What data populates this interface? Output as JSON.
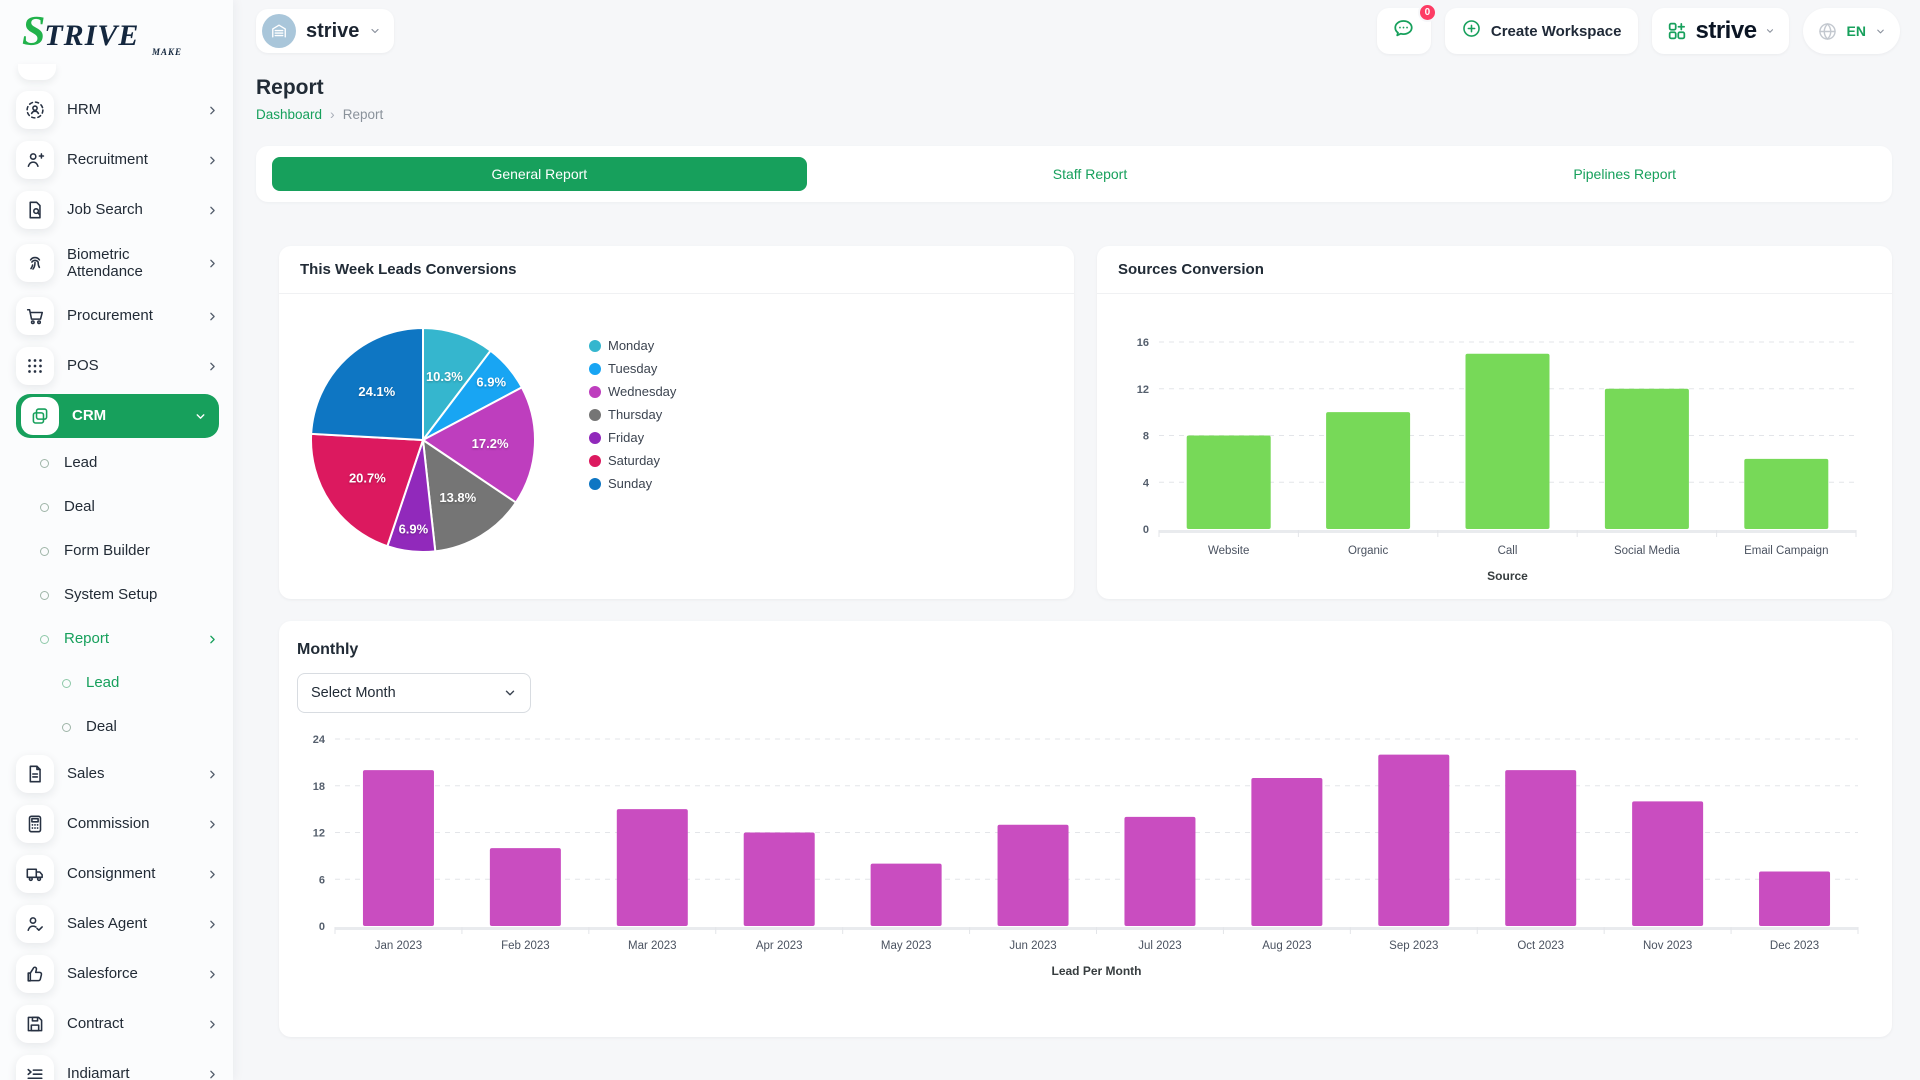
{
  "colors": {
    "accent_green": "#17a05c",
    "logo_green": "#21b24b",
    "badge_pink": "#fd3c64",
    "bar_green": "#77d958",
    "bar_magenta": "#c94dc0"
  },
  "sidebar": {
    "brand": "STRIVE",
    "brand_sub": "MAKE",
    "items": [
      {
        "label": "HRM",
        "icon": "hrm",
        "type": "item"
      },
      {
        "label": "Recruitment",
        "icon": "recruitment",
        "type": "item"
      },
      {
        "label": "Job Search",
        "icon": "job-search",
        "type": "item"
      },
      {
        "label": "Biometric Attendance",
        "icon": "biometric",
        "type": "item",
        "tall": true
      },
      {
        "label": "Procurement",
        "icon": "procurement",
        "type": "item"
      },
      {
        "label": "POS",
        "icon": "pos",
        "type": "item"
      },
      {
        "label": "CRM",
        "icon": "crm",
        "type": "item",
        "active": true
      },
      {
        "label": "Lead",
        "type": "sub"
      },
      {
        "label": "Deal",
        "type": "sub"
      },
      {
        "label": "Form Builder",
        "type": "sub"
      },
      {
        "label": "System Setup",
        "type": "sub"
      },
      {
        "label": "Report",
        "type": "sub",
        "highlight": true,
        "chevron": true
      },
      {
        "label": "Lead",
        "type": "subsub",
        "highlight": true
      },
      {
        "label": "Deal",
        "type": "subsub"
      },
      {
        "label": "Sales",
        "icon": "sales",
        "type": "item"
      },
      {
        "label": "Commission",
        "icon": "commission",
        "type": "item"
      },
      {
        "label": "Consignment",
        "icon": "consignment",
        "type": "item"
      },
      {
        "label": "Sales Agent",
        "icon": "sales-agent",
        "type": "item"
      },
      {
        "label": "Salesforce",
        "icon": "salesforce",
        "type": "item"
      },
      {
        "label": "Contract",
        "icon": "contract",
        "type": "item"
      },
      {
        "label": "Indiamart",
        "icon": "indiamart",
        "type": "item"
      }
    ]
  },
  "topbar": {
    "workspace_name": "strive",
    "chat_badge": "0",
    "create_workspace_label": "Create Workspace",
    "brand_name": "strive",
    "language": "EN"
  },
  "page": {
    "title": "Report",
    "breadcrumb_home": "Dashboard",
    "breadcrumb_current": "Report"
  },
  "tabs": {
    "items": [
      {
        "label": "General Report",
        "active": true
      },
      {
        "label": "Staff Report",
        "active": false
      },
      {
        "label": "Pipelines Report",
        "active": false
      }
    ]
  },
  "monthly": {
    "heading": "Monthly",
    "select_placeholder": "Select Month"
  },
  "chart_data": [
    {
      "type": "pie",
      "title": "This Week Leads Conversions",
      "labels": [
        "Monday",
        "Tuesday",
        "Wednesday",
        "Thursday",
        "Friday",
        "Saturday",
        "Sunday"
      ],
      "values": [
        10.3,
        6.9,
        17.2,
        13.8,
        6.9,
        20.7,
        24.1
      ],
      "value_suffix": "%",
      "colors": [
        "#35b6ce",
        "#18a5f3",
        "#be3ebe",
        "#757575",
        "#9129bb",
        "#dc195f",
        "#0e76c3"
      ],
      "legend_position": "right"
    },
    {
      "type": "bar",
      "title": "Sources Conversion",
      "categories": [
        "Website",
        "Organic",
        "Call",
        "Social Media",
        "Email Campaign"
      ],
      "values": [
        8,
        10,
        15,
        12,
        6
      ],
      "xlabel": "Source",
      "ylabel": "",
      "ylim": [
        0,
        16
      ],
      "yticks": [
        0,
        4,
        8,
        12,
        16
      ],
      "bar_color": "#77d958",
      "grid": "dashed horizontal"
    },
    {
      "type": "bar",
      "title": "Monthly",
      "categories": [
        "Jan 2023",
        "Feb 2023",
        "Mar 2023",
        "Apr 2023",
        "May 2023",
        "Jun 2023",
        "Jul 2023",
        "Aug 2023",
        "Sep 2023",
        "Oct 2023",
        "Nov 2023",
        "Dec 2023"
      ],
      "values": [
        20,
        10,
        15,
        12,
        8,
        13,
        14,
        19,
        22,
        20,
        16,
        7
      ],
      "xlabel": "Lead Per Month",
      "ylabel": "",
      "ylim": [
        0,
        24
      ],
      "yticks": [
        0,
        6,
        12,
        18,
        24
      ],
      "bar_color": "#c94dc0",
      "grid": "dashed horizontal"
    }
  ]
}
